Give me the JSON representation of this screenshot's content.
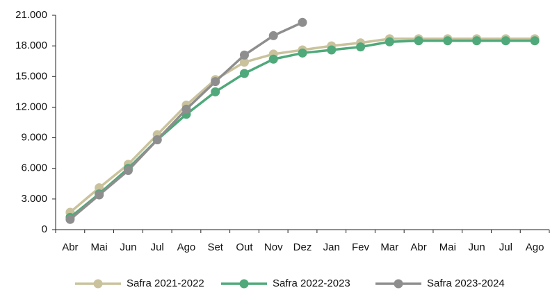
{
  "chart_data": {
    "type": "line",
    "categories": [
      "Abr",
      "Mai",
      "Jun",
      "Jul",
      "Ago",
      "Set",
      "Out",
      "Nov",
      "Dez",
      "Jan",
      "Fev",
      "Mar",
      "Abr",
      "Mai",
      "Jun",
      "Jul",
      "Ago"
    ],
    "series": [
      {
        "name": "Safra 2021-2022",
        "color": "#c9c29c",
        "values": [
          1700,
          4100,
          6400,
          9300,
          12200,
          14700,
          16400,
          17200,
          17600,
          18000,
          18300,
          18700,
          18700,
          18700,
          18700,
          18700,
          18700
        ]
      },
      {
        "name": "Safra 2022-2023",
        "color": "#4fa97a",
        "values": [
          1200,
          3500,
          6000,
          8800,
          11300,
          13500,
          15300,
          16700,
          17300,
          17600,
          17900,
          18400,
          18500,
          18500,
          18500,
          18500,
          18500
        ]
      },
      {
        "name": "Safra 2023-2024",
        "color": "#8e8e8e",
        "values": [
          1000,
          3400,
          5800,
          8800,
          11800,
          14500,
          17100,
          19000,
          20300,
          null,
          null,
          null,
          null,
          null,
          null,
          null,
          null
        ]
      }
    ],
    "ylim": [
      0,
      21000
    ],
    "yticks": [
      0,
      {
        "value": 3000,
        "label": "3.000"
      },
      {
        "value": 6000,
        "label": "6.000"
      },
      {
        "value": 9000,
        "label": "9.000"
      },
      {
        "value": 12000,
        "label": "12.000"
      },
      {
        "value": 15000,
        "label": "15.000"
      },
      {
        "value": 18000,
        "label": "18.000"
      },
      {
        "value": 21000,
        "label": "21.000"
      }
    ],
    "grid": false,
    "legend": "bottom"
  }
}
